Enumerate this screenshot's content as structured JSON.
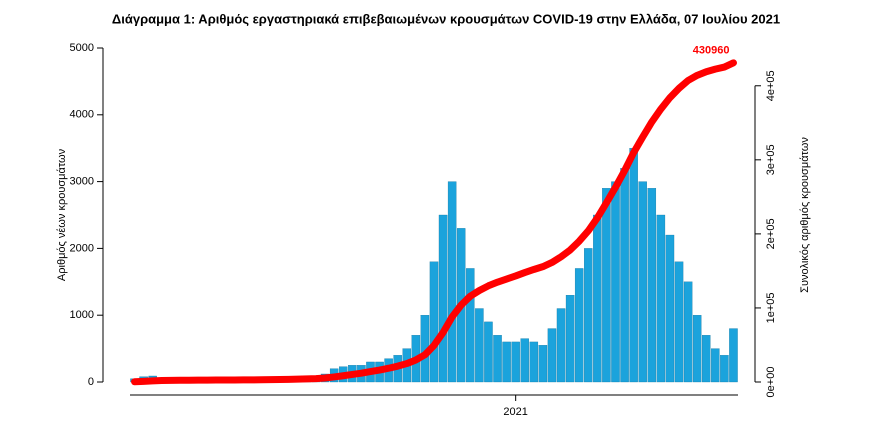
{
  "chart_data": {
    "type": "bar_line",
    "title": "Διάγραμμα 1: Αριθμός εργαστηριακά επιβεβαιωμένων κρουσμάτων COVID-19 στην Ελλάδα, 07 Ιουλίου 2021",
    "y_label": "Αριθμός νέων κρουσμάτων",
    "y2_label": "Συνολικός αριθμός κρουσμάτων",
    "categories": [
      null,
      null,
      null,
      null,
      null,
      null,
      null,
      null,
      null,
      null,
      null,
      null,
      null,
      null,
      null,
      null,
      null,
      null,
      null,
      null,
      null,
      null,
      null,
      null,
      null,
      null,
      null,
      null,
      null,
      null,
      null,
      null,
      null,
      null,
      null,
      null,
      null,
      null,
      null,
      null,
      null,
      null,
      "2021",
      null,
      null,
      null,
      null,
      null,
      null,
      null,
      null,
      null,
      null,
      null,
      null,
      null,
      null,
      null,
      null,
      null,
      null,
      null,
      null,
      null,
      null,
      null,
      null
    ],
    "series": [
      {
        "type": "bar",
        "color": "#1ba3dc",
        "values": [
          50,
          80,
          90,
          60,
          30,
          20,
          15,
          10,
          10,
          10,
          10,
          10,
          10,
          10,
          15,
          20,
          25,
          30,
          40,
          50,
          60,
          120,
          200,
          230,
          250,
          250,
          300,
          300,
          350,
          400,
          500,
          700,
          1000,
          1800,
          2500,
          3000,
          2300,
          1700,
          1100,
          900,
          700,
          600,
          600,
          650,
          600,
          550,
          800,
          1100,
          1300,
          1700,
          2000,
          2500,
          2900,
          3000,
          3200,
          3500,
          3000,
          2900,
          2500,
          2200,
          1800,
          1500,
          1000,
          700,
          500,
          400,
          800
        ]
      },
      {
        "type": "line",
        "axis": "y2",
        "color": "#ff0000",
        "values": [
          350,
          910,
          1540,
          1960,
          2170,
          2310,
          2415,
          2485,
          2555,
          2625,
          2695,
          2765,
          2835,
          2905,
          3010,
          3150,
          3325,
          3535,
          3815,
          4165,
          4585,
          5425,
          6825,
          8435,
          10185,
          11935,
          14035,
          16135,
          18585,
          21385,
          24885,
          29785,
          36785,
          49385,
          66885,
          87885,
          103985,
          115885,
          123585,
          129885,
          134785,
          138985,
          143185,
          147735,
          151935,
          155785,
          161385,
          169085,
          178185,
          190085,
          204085,
          221585,
          241885,
          262885,
          285285,
          309785,
          330785,
          351085,
          368585,
          383985,
          396585,
          407085,
          414085,
          418985,
          422485,
          425285,
          430960
        ]
      }
    ],
    "annotations": [
      {
        "text": "430960"
      }
    ],
    "ylim": [
      0,
      5000
    ],
    "yticks": [
      0,
      1000,
      2000,
      3000,
      4000,
      5000
    ],
    "y2lim": [
      0,
      451000
    ],
    "y2ticks": [
      {
        "value": 0,
        "label": "0e+00"
      },
      {
        "value": 100000,
        "label": "1e+05"
      },
      {
        "value": 200000,
        "label": "2e+05"
      },
      {
        "value": 300000,
        "label": "3e+05"
      },
      {
        "value": 400000,
        "label": "4e+05"
      }
    ]
  }
}
